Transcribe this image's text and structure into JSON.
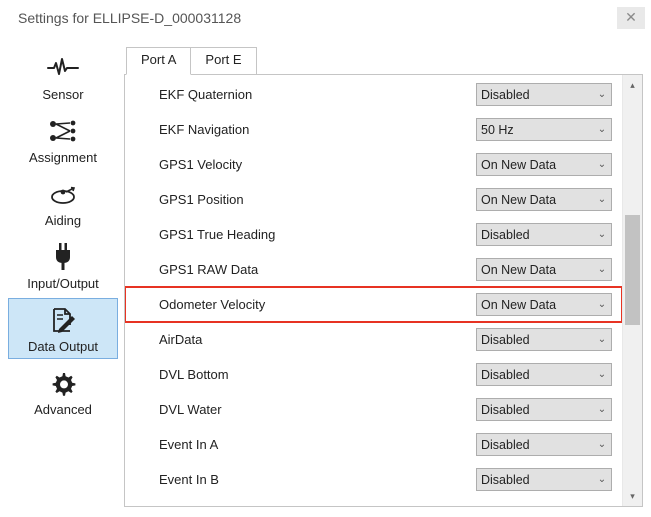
{
  "window": {
    "title": "Settings for ELLIPSE-D_000031128"
  },
  "sidebar": {
    "items": [
      {
        "key": "sensor",
        "label": "Sensor",
        "active": false
      },
      {
        "key": "assignment",
        "label": "Assignment",
        "active": false
      },
      {
        "key": "aiding",
        "label": "Aiding",
        "active": false
      },
      {
        "key": "inputoutput",
        "label": "Input/Output",
        "active": false
      },
      {
        "key": "dataoutput",
        "label": "Data Output",
        "active": true
      },
      {
        "key": "advanced",
        "label": "Advanced",
        "active": false
      }
    ]
  },
  "tabs": [
    {
      "key": "porta",
      "label": "Port A",
      "active": true
    },
    {
      "key": "porte",
      "label": "Port E",
      "active": false
    }
  ],
  "rows": [
    {
      "label": "EKF Quaternion",
      "value": "Disabled",
      "highlight": false
    },
    {
      "label": "EKF Navigation",
      "value": "50 Hz",
      "highlight": false
    },
    {
      "label": "GPS1 Velocity",
      "value": "On New Data",
      "highlight": false
    },
    {
      "label": "GPS1 Position",
      "value": "On New Data",
      "highlight": false
    },
    {
      "label": "GPS1 True Heading",
      "value": "Disabled",
      "highlight": false
    },
    {
      "label": "GPS1 RAW Data",
      "value": "On New Data",
      "highlight": false
    },
    {
      "label": "Odometer Velocity",
      "value": "On New Data",
      "highlight": true
    },
    {
      "label": "AirData",
      "value": "Disabled",
      "highlight": false
    },
    {
      "label": "DVL Bottom",
      "value": "Disabled",
      "highlight": false
    },
    {
      "label": "DVL Water",
      "value": "Disabled",
      "highlight": false
    },
    {
      "label": "Event In A",
      "value": "Disabled",
      "highlight": false
    },
    {
      "label": "Event In B",
      "value": "Disabled",
      "highlight": false
    }
  ],
  "colors": {
    "highlight_border": "#e73323",
    "active_sidebar_bg": "#cde6f7",
    "active_sidebar_border": "#7aaee0",
    "dropdown_bg": "#e1e1e1",
    "dropdown_border": "#adadad",
    "panel_border": "#c5c5c5"
  }
}
